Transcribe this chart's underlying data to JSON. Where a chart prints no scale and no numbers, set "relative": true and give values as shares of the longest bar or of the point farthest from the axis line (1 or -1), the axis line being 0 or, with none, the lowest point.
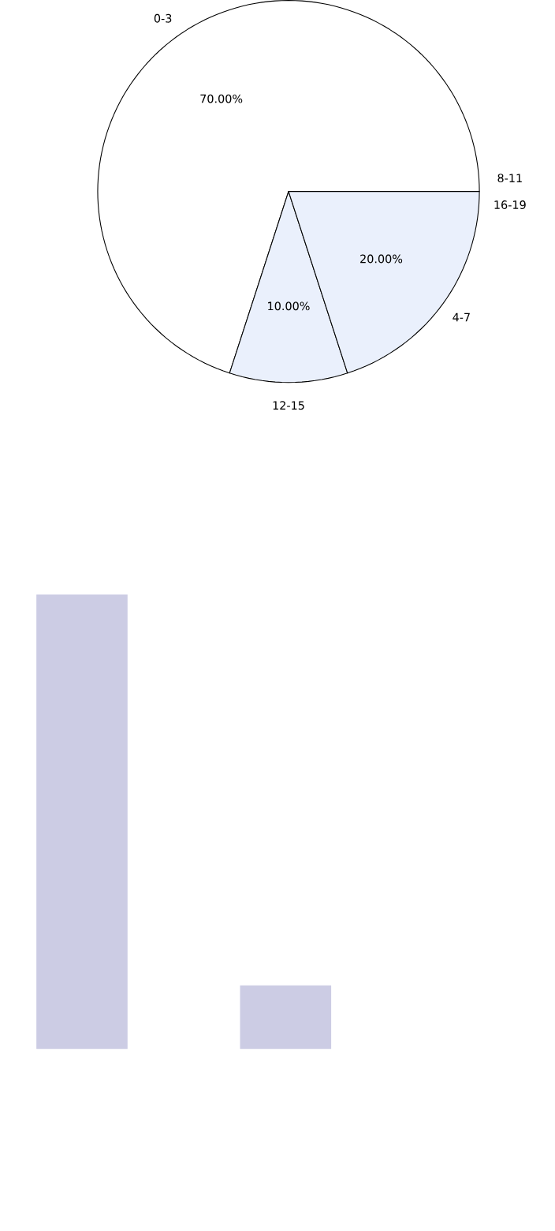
{
  "chart_data": [
    {
      "type": "pie",
      "categories": [
        "0-3",
        "12-15",
        "4-7",
        "8-11",
        "16-19"
      ],
      "values": [
        70,
        10,
        20,
        0,
        0
      ],
      "colors": [
        "#ffffff",
        "#eaf0fc",
        "#eaf0fc",
        "#ffffff",
        "#ffffff"
      ],
      "value_labels": [
        "70.00%",
        "10.00%",
        "20.00%",
        null,
        null
      ]
    },
    {
      "type": "bar",
      "relative": true,
      "categories": [
        null,
        null
      ],
      "values": [
        1,
        0.14
      ],
      "color": "#ccccE4"
    }
  ]
}
